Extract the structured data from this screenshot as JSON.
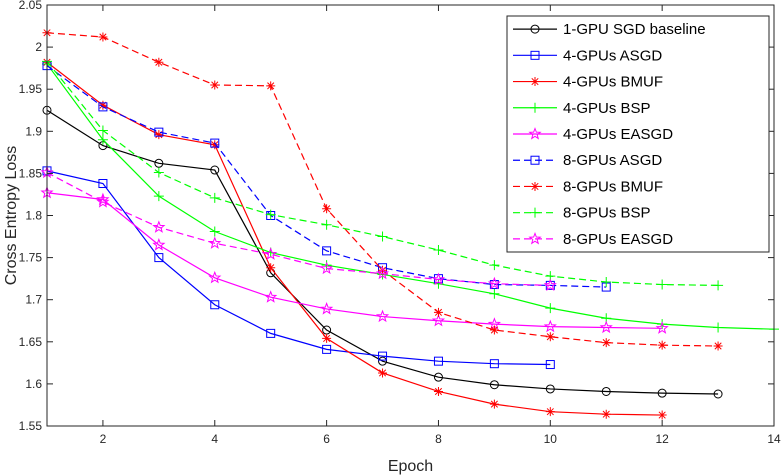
{
  "chart_data": {
    "type": "line",
    "title": "",
    "xlabel": "Epoch",
    "ylabel": "Cross Entropy Loss",
    "xlim": [
      1,
      14
    ],
    "ylim": [
      1.55,
      2.05
    ],
    "xticks": [
      2,
      4,
      6,
      8,
      10,
      12,
      14
    ],
    "yticks": [
      1.55,
      1.6,
      1.65,
      1.7,
      1.75,
      1.8,
      1.85,
      1.9,
      1.95,
      2.0,
      2.05
    ],
    "ytick_labels": [
      "1.55",
      "1.6",
      "1.65",
      "1.7",
      "1.75",
      "1.8",
      "1.85",
      "1.9",
      "1.95",
      "2",
      "2.05"
    ],
    "grid": false,
    "legend_position": "top-right",
    "series": [
      {
        "name": "1-GPU SGD baseline",
        "color": "#000000",
        "line": "solid",
        "marker": "circle",
        "x": [
          1,
          2,
          3,
          4,
          5,
          6,
          7,
          8,
          9,
          10,
          11,
          12,
          13
        ],
        "y": [
          1.925,
          1.883,
          1.862,
          1.854,
          1.732,
          1.664,
          1.627,
          1.608,
          1.599,
          1.594,
          1.591,
          1.589,
          1.588
        ]
      },
      {
        "name": "4-GPUs ASGD",
        "color": "#0000ff",
        "line": "solid",
        "marker": "square",
        "x": [
          1,
          2,
          3,
          4,
          5,
          6,
          7,
          8,
          9,
          10
        ],
        "y": [
          1.853,
          1.838,
          1.75,
          1.694,
          1.66,
          1.641,
          1.633,
          1.627,
          1.624,
          1.623
        ]
      },
      {
        "name": "4-GPUs BMUF",
        "color": "#ff0000",
        "line": "solid",
        "marker": "asterisk",
        "x": [
          1,
          2,
          3,
          4,
          5,
          6,
          7,
          8,
          9,
          10,
          11,
          12
        ],
        "y": [
          1.982,
          1.931,
          1.896,
          1.884,
          1.738,
          1.654,
          1.613,
          1.591,
          1.576,
          1.567,
          1.564,
          1.563
        ]
      },
      {
        "name": "4-GPUs BSP",
        "color": "#00ff00",
        "line": "solid",
        "marker": "plus",
        "x": [
          1,
          2,
          3,
          4,
          5,
          6,
          7,
          8,
          9,
          10,
          11,
          12,
          13,
          14
        ],
        "y": [
          1.98,
          1.89,
          1.823,
          1.781,
          1.756,
          1.741,
          1.73,
          1.719,
          1.707,
          1.69,
          1.678,
          1.671,
          1.667,
          1.665
        ]
      },
      {
        "name": "4-GPUs EASGD",
        "color": "#ff00ff",
        "line": "solid",
        "marker": "star",
        "x": [
          1,
          2,
          3,
          4,
          5,
          6,
          7,
          8,
          9,
          10,
          11,
          12
        ],
        "y": [
          1.827,
          1.819,
          1.765,
          1.726,
          1.703,
          1.689,
          1.68,
          1.675,
          1.671,
          1.668,
          1.667,
          1.666
        ]
      },
      {
        "name": "8-GPUs ASGD",
        "color": "#0000ff",
        "line": "dashed",
        "marker": "square",
        "x": [
          1,
          2,
          3,
          4,
          5,
          6,
          7,
          8,
          9,
          10,
          11
        ],
        "y": [
          1.978,
          1.929,
          1.899,
          1.886,
          1.8,
          1.758,
          1.738,
          1.725,
          1.718,
          1.717,
          1.715
        ]
      },
      {
        "name": "8-GPUs BMUF",
        "color": "#ff0000",
        "line": "dashed",
        "marker": "asterisk",
        "x": [
          1,
          2,
          3,
          4,
          5,
          6,
          7,
          8,
          9,
          10,
          11,
          12,
          13
        ],
        "y": [
          2.017,
          2.012,
          1.982,
          1.955,
          1.954,
          1.808,
          1.735,
          1.685,
          1.664,
          1.656,
          1.649,
          1.646,
          1.645
        ]
      },
      {
        "name": "8-GPUs BSP",
        "color": "#00ff00",
        "line": "dashed",
        "marker": "plus",
        "x": [
          1,
          2,
          3,
          4,
          5,
          6,
          7,
          8,
          9,
          10,
          11,
          12,
          13
        ],
        "y": [
          1.983,
          1.901,
          1.851,
          1.821,
          1.801,
          1.789,
          1.775,
          1.759,
          1.741,
          1.728,
          1.721,
          1.718,
          1.717
        ]
      },
      {
        "name": "8-GPUs EASGD",
        "color": "#ff00ff",
        "line": "dashed",
        "marker": "star",
        "x": [
          1,
          2,
          3,
          4,
          5,
          6,
          7,
          8,
          9,
          10
        ],
        "y": [
          1.851,
          1.816,
          1.786,
          1.767,
          1.754,
          1.737,
          1.731,
          1.724,
          1.719,
          1.717
        ]
      }
    ]
  }
}
